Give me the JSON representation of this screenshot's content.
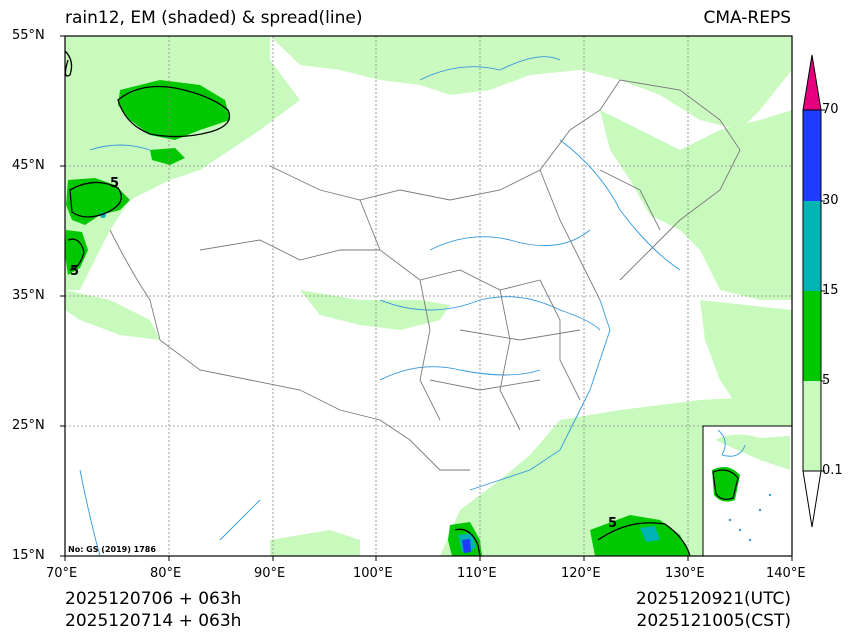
{
  "title_left": "rain12, EM (shaded) & spread(line)",
  "title_right": "CMA-REPS",
  "lat_labels": [
    "55°N",
    "45°N",
    "35°N",
    "25°N",
    "15°N"
  ],
  "lon_labels": [
    "70°E",
    "80°E",
    "90°E",
    "100°E",
    "110°E",
    "120°E",
    "130°E",
    "140°E"
  ],
  "colorbar_labels": [
    "70",
    "30",
    "15",
    "5",
    "0.1"
  ],
  "colorbar_colors": [
    "#e6007e",
    "#1e3cff",
    "#00b4b4",
    "#00c800",
    "#c8fabe",
    "#ffffff"
  ],
  "map_note": "No: GS (2019) 1786",
  "contour_label": "5",
  "footer": {
    "init_utc": "2025120706  +  063h",
    "init_cst": "2025120714  +  063h",
    "valid_utc": "2025120921(UTC)",
    "valid_cst": "2025121005(CST)"
  }
}
